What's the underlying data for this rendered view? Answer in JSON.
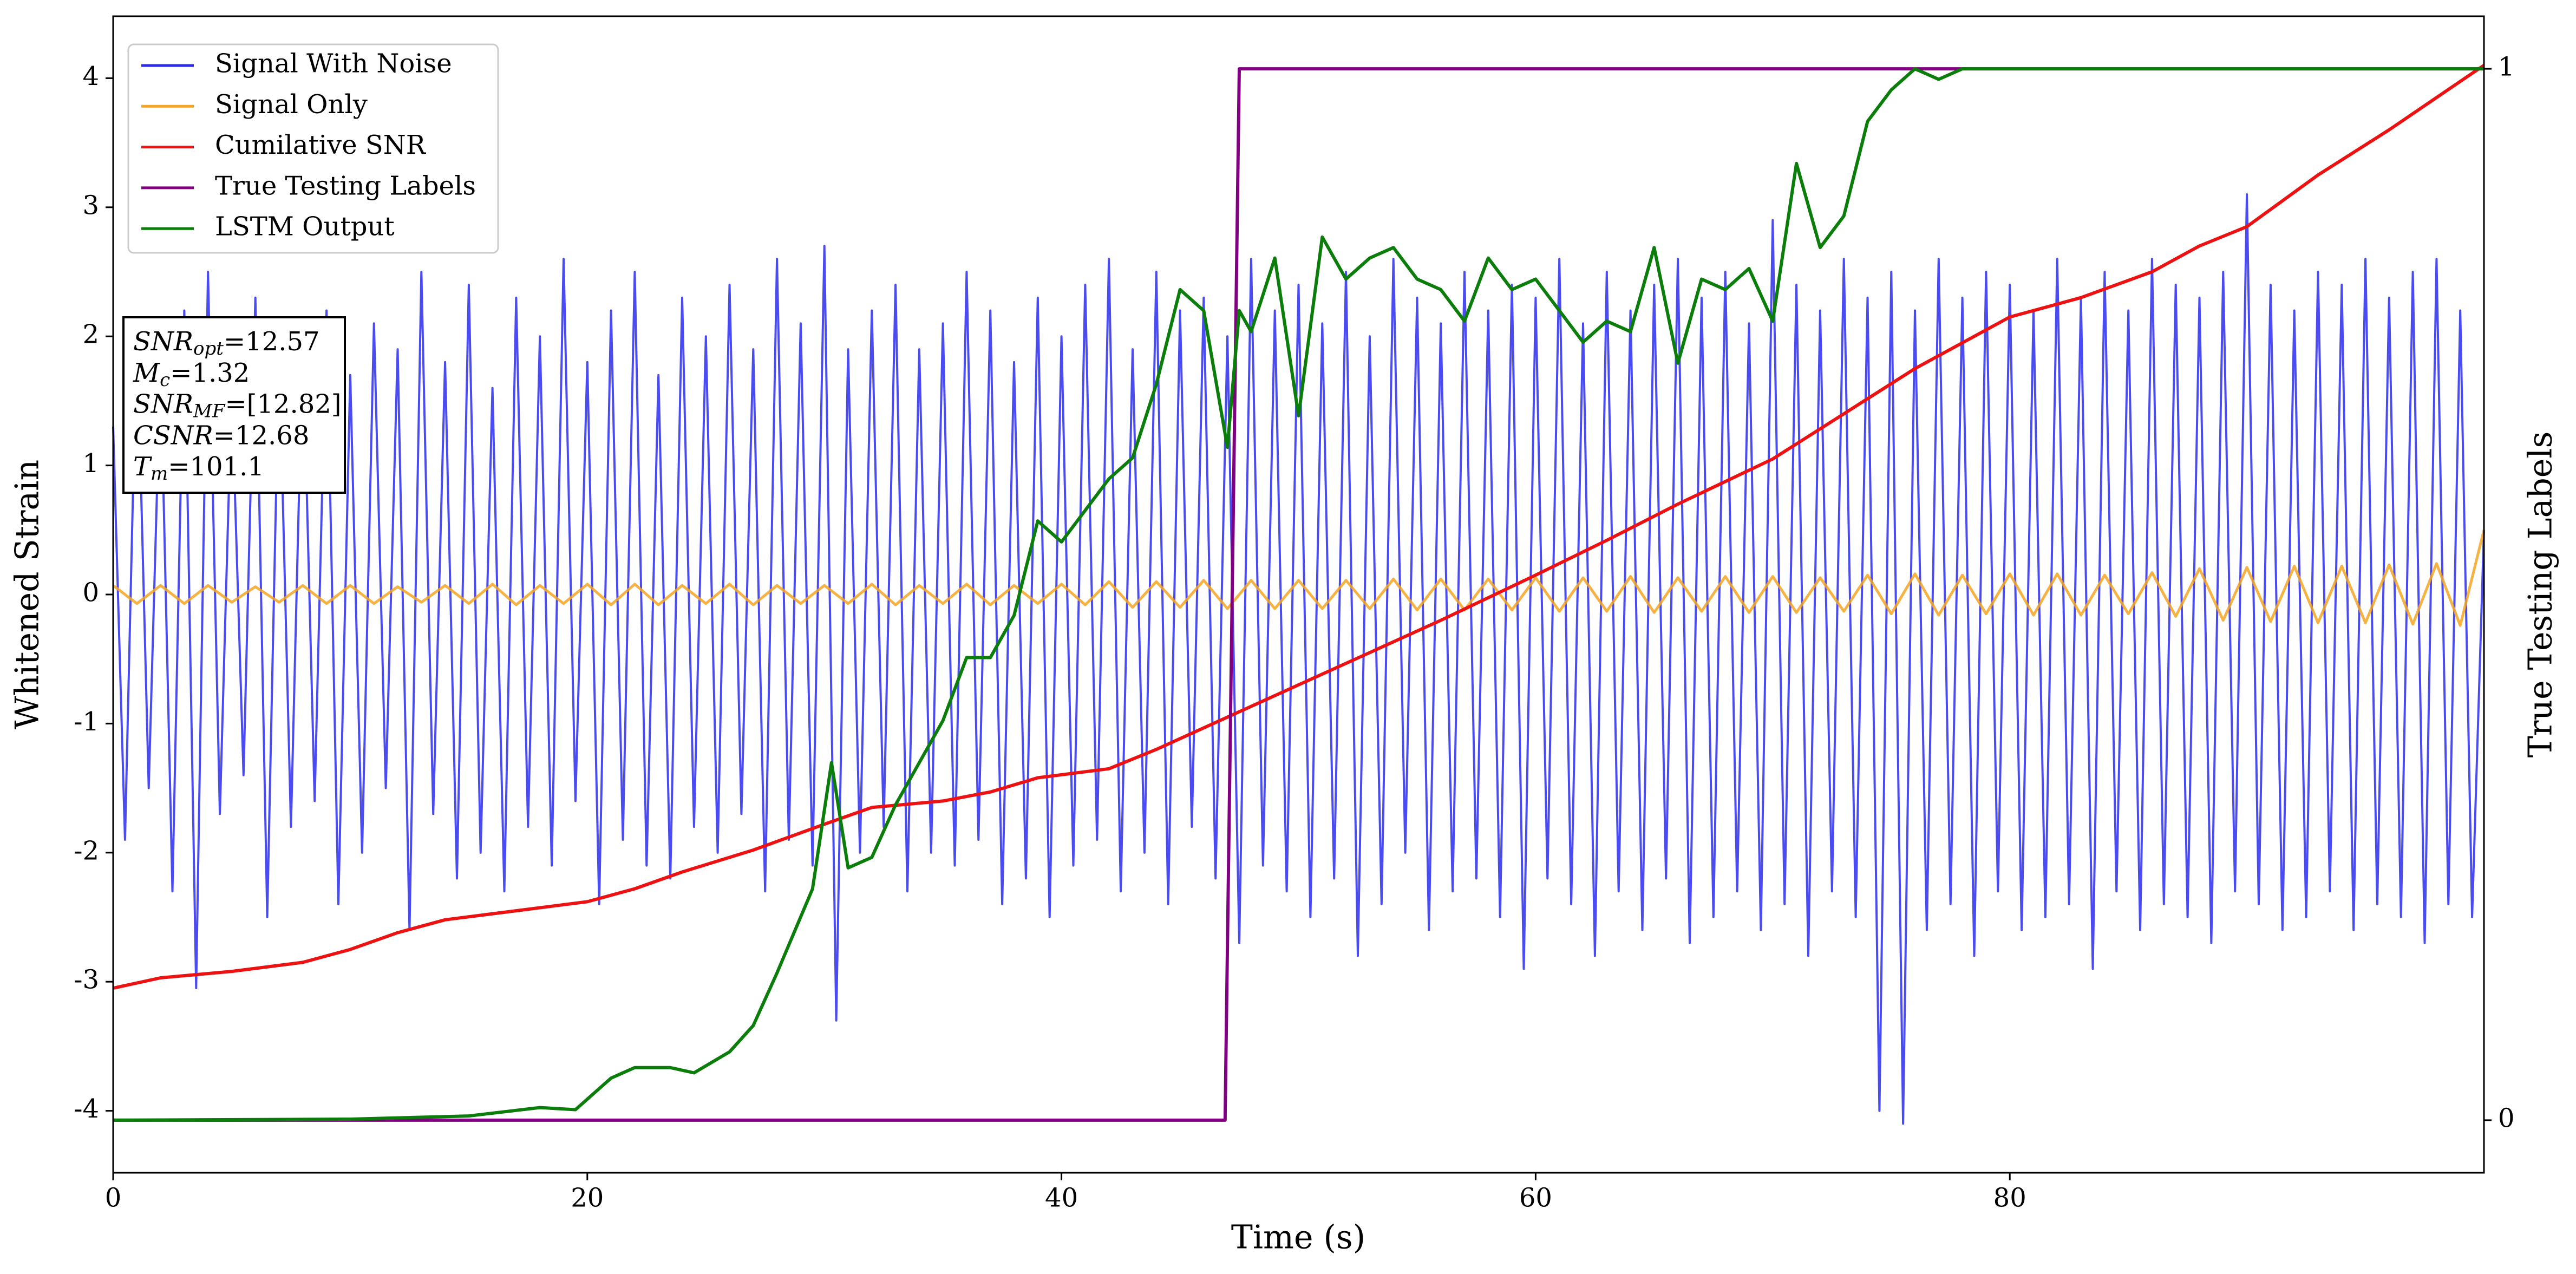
{
  "chart_data": {
    "type": "line",
    "xlabel": "Time (s)",
    "ylabel": "Whitened Strain",
    "y2label": "True Testing Labels",
    "xlim": [
      0,
      100
    ],
    "ylim": [
      -4.48,
      4.48
    ],
    "y2lim": [
      -0.05,
      1.05
    ],
    "xticks": [
      0,
      20,
      40,
      60,
      80
    ],
    "yticks": [
      -4,
      -3,
      -2,
      -1,
      0,
      1,
      2,
      3,
      4
    ],
    "y2ticks": [
      0,
      1
    ],
    "legend": "upper left",
    "series": [
      {
        "name": "Signal With Noise",
        "color": "#2b2bf0",
        "x": [
          0,
          0.5,
          1,
          1.5,
          2,
          2.5,
          3,
          3.5,
          4,
          4.5,
          5,
          5.5,
          6,
          6.5,
          7,
          7.5,
          8,
          8.5,
          9,
          9.5,
          10,
          10.5,
          11,
          11.5,
          12,
          12.5,
          13,
          13.5,
          14,
          14.5,
          15,
          15.5,
          16,
          16.5,
          17,
          17.5,
          18,
          18.5,
          19,
          19.5,
          20,
          20.5,
          21,
          21.5,
          22,
          22.5,
          23,
          23.5,
          24,
          24.5,
          25,
          25.5,
          26,
          26.5,
          27,
          27.5,
          28,
          28.5,
          29,
          29.5,
          30,
          30.5,
          31,
          31.5,
          32,
          32.5,
          33,
          33.5,
          34,
          34.5,
          35,
          35.5,
          36,
          36.5,
          37,
          37.5,
          38,
          38.5,
          39,
          39.5,
          40,
          40.5,
          41,
          41.5,
          42,
          42.5,
          43,
          43.5,
          44,
          44.5,
          45,
          45.5,
          46,
          46.5,
          47,
          47.5,
          48,
          48.5,
          49,
          49.5,
          50,
          50.5,
          51,
          51.5,
          52,
          52.5,
          53,
          53.5,
          54,
          54.5,
          55,
          55.5,
          56,
          56.5,
          57,
          57.5,
          58,
          58.5,
          59,
          59.5,
          60,
          60.5,
          61,
          61.5,
          62,
          62.5,
          63,
          63.5,
          64,
          64.5,
          65,
          65.5,
          66,
          66.5,
          67,
          67.5,
          68,
          68.5,
          69,
          69.5,
          70,
          70.5,
          71,
          71.5,
          72,
          72.5,
          73,
          73.5,
          74,
          74.5,
          75,
          75.5,
          76,
          76.5,
          77,
          77.5,
          78,
          78.5,
          79,
          79.5,
          80,
          80.5,
          81,
          81.5,
          82,
          82.5,
          83,
          83.5,
          84,
          84.5,
          85,
          85.5,
          86,
          86.5,
          87,
          87.5,
          88,
          88.5,
          89,
          89.5,
          90,
          90.5,
          91,
          91.5,
          92,
          92.5,
          93,
          93.5,
          94,
          94.5,
          95,
          95.5,
          96,
          96.5,
          97,
          97.5,
          98,
          98.5,
          99,
          99.5,
          100
        ],
        "values": [
          1.3,
          -1.9,
          2.1,
          -1.5,
          1.8,
          -2.3,
          2.2,
          -3.05,
          2.5,
          -1.7,
          1.6,
          -1.4,
          2.3,
          -2.5,
          1.9,
          -1.8,
          2.0,
          -1.6,
          2.2,
          -2.4,
          1.7,
          -2.0,
          2.1,
          -1.5,
          1.9,
          -2.6,
          2.5,
          -1.7,
          1.8,
          -2.2,
          2.4,
          -2.0,
          1.6,
          -2.3,
          2.3,
          -1.8,
          2.0,
          -2.1,
          2.6,
          -1.6,
          1.8,
          -2.4,
          2.2,
          -1.9,
          2.5,
          -2.1,
          1.7,
          -2.2,
          2.3,
          -1.8,
          2.0,
          -2.0,
          2.4,
          -1.7,
          1.9,
          -2.3,
          2.6,
          -1.9,
          2.1,
          -2.1,
          2.7,
          -3.3,
          1.9,
          -2.0,
          2.2,
          -1.8,
          2.4,
          -2.3,
          1.9,
          -2.0,
          2.1,
          -2.1,
          2.5,
          -1.9,
          2.2,
          -2.4,
          1.8,
          -2.2,
          2.3,
          -2.5,
          2.0,
          -2.1,
          2.4,
          -1.9,
          2.6,
          -2.3,
          1.9,
          -2.0,
          2.5,
          -2.4,
          2.2,
          -1.8,
          2.3,
          -2.2,
          2.0,
          -2.7,
          2.6,
          -2.1,
          2.2,
          -2.3,
          2.4,
          -2.5,
          2.1,
          -2.2,
          2.5,
          -2.8,
          2.0,
          -2.4,
          2.6,
          -2.0,
          2.3,
          -2.6,
          2.1,
          -2.3,
          2.5,
          -2.2,
          2.2,
          -2.5,
          2.4,
          -2.9,
          2.3,
          -2.2,
          2.6,
          -2.4,
          2.1,
          -2.8,
          2.5,
          -2.3,
          2.2,
          -2.6,
          2.4,
          -2.2,
          2.6,
          -2.7,
          2.3,
          -2.5,
          2.5,
          -2.3,
          2.1,
          -2.6,
          2.9,
          -2.4,
          2.4,
          -2.8,
          2.2,
          -2.3,
          2.6,
          -2.5,
          2.3,
          -4.0,
          2.5,
          -4.1,
          2.2,
          -2.6,
          2.6,
          -2.4,
          2.3,
          -2.8,
          2.5,
          -2.3,
          2.4,
          -2.6,
          2.2,
          -2.5,
          2.6,
          -2.4,
          2.3,
          -2.9,
          2.5,
          -2.3,
          2.2,
          -2.6,
          2.6,
          -2.4,
          2.4,
          -2.5,
          2.3,
          -2.7,
          2.5,
          -2.3,
          3.1,
          -2.4,
          2.4,
          -2.6,
          2.2,
          -2.5,
          2.5,
          -2.3,
          2.4,
          -2.6,
          2.6,
          -2.4,
          2.3,
          -2.5,
          2.5,
          -2.7,
          2.6,
          -2.4,
          2.2,
          -2.5,
          0.5
        ]
      },
      {
        "name": "Signal Only",
        "color": "#f5a623",
        "x": [
          0,
          1,
          2,
          3,
          4,
          5,
          6,
          7,
          8,
          9,
          10,
          11,
          12,
          13,
          14,
          15,
          16,
          17,
          18,
          19,
          20,
          21,
          22,
          23,
          24,
          25,
          26,
          27,
          28,
          29,
          30,
          31,
          32,
          33,
          34,
          35,
          36,
          37,
          38,
          39,
          40,
          41,
          42,
          43,
          44,
          45,
          46,
          47,
          48,
          49,
          50,
          51,
          52,
          53,
          54,
          55,
          56,
          57,
          58,
          59,
          60,
          61,
          62,
          63,
          64,
          65,
          66,
          67,
          68,
          69,
          70,
          71,
          72,
          73,
          74,
          75,
          76,
          77,
          78,
          79,
          80,
          81,
          82,
          83,
          84,
          85,
          86,
          87,
          88,
          89,
          90,
          91,
          92,
          93,
          94,
          95,
          96,
          97,
          98,
          99,
          100
        ],
        "values": [
          0.07,
          -0.07,
          0.07,
          -0.07,
          0.07,
          -0.06,
          0.06,
          -0.06,
          0.07,
          -0.07,
          0.07,
          -0.07,
          0.06,
          -0.06,
          0.07,
          -0.07,
          0.08,
          -0.08,
          0.07,
          -0.07,
          0.08,
          -0.08,
          0.08,
          -0.08,
          0.07,
          -0.07,
          0.08,
          -0.08,
          0.07,
          -0.07,
          0.07,
          -0.07,
          0.08,
          -0.08,
          0.07,
          -0.07,
          0.08,
          -0.08,
          0.07,
          -0.07,
          0.08,
          -0.08,
          0.1,
          -0.1,
          0.1,
          -0.1,
          0.11,
          -0.11,
          0.11,
          -0.11,
          0.11,
          -0.11,
          0.11,
          -0.11,
          0.12,
          -0.12,
          0.12,
          -0.12,
          0.12,
          -0.12,
          0.13,
          -0.13,
          0.13,
          -0.13,
          0.14,
          -0.14,
          0.13,
          -0.13,
          0.14,
          -0.14,
          0.14,
          -0.14,
          0.13,
          -0.13,
          0.15,
          -0.15,
          0.16,
          -0.16,
          0.15,
          -0.15,
          0.16,
          -0.16,
          0.16,
          -0.16,
          0.15,
          -0.15,
          0.17,
          -0.17,
          0.2,
          -0.2,
          0.21,
          -0.21,
          0.22,
          -0.22,
          0.22,
          -0.22,
          0.23,
          -0.23,
          0.24,
          -0.24,
          0.5
        ]
      },
      {
        "name": "Cumilative SNR",
        "color": "#ee1111",
        "x": [
          0,
          2,
          5,
          8,
          10,
          12,
          14,
          17,
          20,
          22,
          24,
          27,
          30,
          32,
          35,
          37,
          39,
          42,
          44,
          47,
          50,
          53,
          56,
          60,
          63,
          66,
          70,
          73,
          76,
          80,
          83,
          86,
          88,
          90,
          93,
          96,
          100
        ],
        "values": [
          -3.05,
          -2.97,
          -2.92,
          -2.85,
          -2.75,
          -2.62,
          -2.52,
          -2.45,
          -2.38,
          -2.28,
          -2.15,
          -1.98,
          -1.78,
          -1.65,
          -1.6,
          -1.53,
          -1.42,
          -1.35,
          -1.2,
          -0.95,
          -0.7,
          -0.45,
          -0.2,
          0.15,
          0.42,
          0.7,
          1.05,
          1.4,
          1.75,
          2.15,
          2.3,
          2.5,
          2.7,
          2.85,
          3.25,
          3.6,
          4.1
        ]
      },
      {
        "name": "True Testing Labels",
        "color": "#800080",
        "axis": "y2",
        "x": [
          0,
          46.9,
          47.5,
          100
        ],
        "values": [
          0,
          0,
          1,
          1
        ]
      },
      {
        "name": "LSTM Output",
        "color": "#0a7d0a",
        "axis": "y2",
        "x": [
          0,
          10,
          15,
          18,
          19.5,
          21,
          22,
          23.5,
          24.5,
          26,
          27,
          28,
          29.5,
          30.3,
          31,
          32,
          33,
          34,
          35,
          36,
          37,
          38,
          39,
          40,
          41,
          42,
          43,
          44,
          45,
          46,
          47,
          47.5,
          48,
          49,
          50,
          51,
          52,
          53,
          54,
          55,
          56,
          57,
          58,
          59,
          60,
          61,
          62,
          63,
          64,
          65,
          66,
          67,
          68,
          69,
          70,
          71,
          72,
          73,
          74,
          75,
          76,
          77,
          78,
          80,
          100
        ],
        "values": [
          0,
          0.001,
          0.004,
          0.012,
          0.01,
          0.04,
          0.05,
          0.05,
          0.045,
          0.065,
          0.09,
          0.14,
          0.22,
          0.34,
          0.24,
          0.25,
          0.3,
          0.34,
          0.38,
          0.44,
          0.44,
          0.48,
          0.57,
          0.55,
          0.58,
          0.61,
          0.63,
          0.7,
          0.79,
          0.77,
          0.64,
          0.77,
          0.75,
          0.82,
          0.67,
          0.84,
          0.8,
          0.82,
          0.83,
          0.8,
          0.79,
          0.76,
          0.82,
          0.79,
          0.8,
          0.77,
          0.74,
          0.76,
          0.75,
          0.83,
          0.72,
          0.8,
          0.79,
          0.81,
          0.76,
          0.91,
          0.83,
          0.86,
          0.95,
          0.98,
          1.0,
          0.99,
          1.0,
          1.0,
          1.0
        ]
      }
    ],
    "annotation": [
      [
        "SNR",
        "opt",
        "=12.57"
      ],
      [
        "M",
        "c",
        "=1.32"
      ],
      [
        "SNR",
        "MF",
        "=[12.82]"
      ],
      [
        "CSNR",
        "=12.68"
      ],
      [
        "T",
        "m",
        "=101.1"
      ]
    ]
  }
}
